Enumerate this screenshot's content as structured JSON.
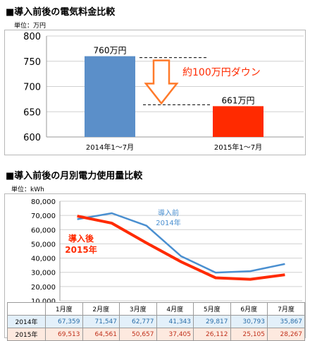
{
  "chart_data": [
    {
      "type": "bar",
      "title": "■導入前後の電気料金比較",
      "unit_label": "単位：万円",
      "categories": [
        "2014年1～7月",
        "2015年1～7月"
      ],
      "values": [
        760,
        661
      ],
      "bar_labels": [
        "760万円",
        "661万円"
      ],
      "colors": [
        "#5b8fc9",
        "#ff2a00"
      ],
      "ylim": [
        600,
        800
      ],
      "yticks": [
        600,
        650,
        700,
        750,
        800
      ],
      "grid": true,
      "annotation": "約100万円ダウン",
      "annotation_color": "#ff2a00",
      "arrow_color": "#ff7a2a"
    },
    {
      "type": "line",
      "title": "■導入前後の月別電力使用量比較",
      "unit_label": "単位：kWh",
      "categories": [
        "1月度",
        "2月度",
        "3月度",
        "4月度",
        "5月度",
        "6月度",
        "7月度"
      ],
      "ylim": [
        10000,
        80000
      ],
      "yticks": [
        10000,
        20000,
        30000,
        40000,
        50000,
        60000,
        70000,
        80000
      ],
      "ytick_labels": [
        "10,000",
        "20,000",
        "30,000",
        "40,000",
        "50,000",
        "60,000",
        "70,000",
        "80,000"
      ],
      "grid": true,
      "series": [
        {
          "name": "2014年",
          "label_lines": [
            "導入前",
            "2014年"
          ],
          "color": "#4a8fd0",
          "values": [
            67359,
            71547,
            62777,
            41343,
            29817,
            30793,
            35867
          ],
          "value_labels": [
            "67,359",
            "71,547",
            "62,777",
            "41,343",
            "29,817",
            "30,793",
            "35,867"
          ]
        },
        {
          "name": "2015年",
          "label_lines": [
            "導入後",
            "2015年"
          ],
          "color": "#ff2a00",
          "values": [
            69513,
            64561,
            50657,
            37405,
            26112,
            25105,
            28267
          ],
          "value_labels": [
            "69,513",
            "64,561",
            "50,657",
            "37,405",
            "26,112",
            "25,105",
            "28,267"
          ]
        }
      ]
    }
  ]
}
